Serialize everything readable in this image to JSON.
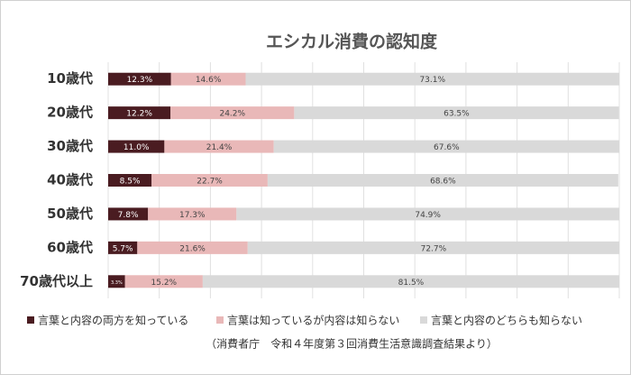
{
  "chart_data": {
    "type": "stacked-bar-horizontal",
    "title": "エシカル消費の認知度",
    "categories": [
      "10歳代",
      "20歳代",
      "30歳代",
      "40歳代",
      "50歳代",
      "60歳代",
      "70歳代以上"
    ],
    "series": [
      {
        "name": "言葉と内容の両方を知っている",
        "color": "#4a1c21",
        "values": [
          12.3,
          12.2,
          11.0,
          8.5,
          7.8,
          5.7,
          3.3
        ],
        "value_labels": [
          "12.3%",
          "12.2%",
          "11.0%",
          "8.5%",
          "7.8%",
          "5.7%",
          "3.3%"
        ]
      },
      {
        "name": "言葉は知っているが内容は知らない",
        "color": "#e9b8b8",
        "values": [
          14.6,
          24.2,
          21.4,
          22.7,
          17.3,
          21.6,
          15.2
        ],
        "value_labels": [
          "14.6%",
          "24.2%",
          "21.4%",
          "22.7%",
          "17.3%",
          "21.6%",
          "15.2%"
        ]
      },
      {
        "name": "言葉と内容のどちらも知らない",
        "color": "#d9d9d9",
        "values": [
          73.1,
          63.5,
          67.6,
          68.6,
          74.9,
          72.7,
          81.5
        ],
        "value_labels": [
          "73.1%",
          "63.5%",
          "67.6%",
          "68.6%",
          "74.9%",
          "72.7%",
          "81.5%"
        ]
      }
    ],
    "xlim": [
      0,
      100
    ],
    "xticks": [
      0,
      10,
      20,
      30,
      40,
      50,
      60,
      70,
      80,
      90,
      100
    ],
    "grid": true,
    "legend": "bottom",
    "annotation": "（消費者庁　令和４年度第３回消費生活意識調査結果より）"
  }
}
